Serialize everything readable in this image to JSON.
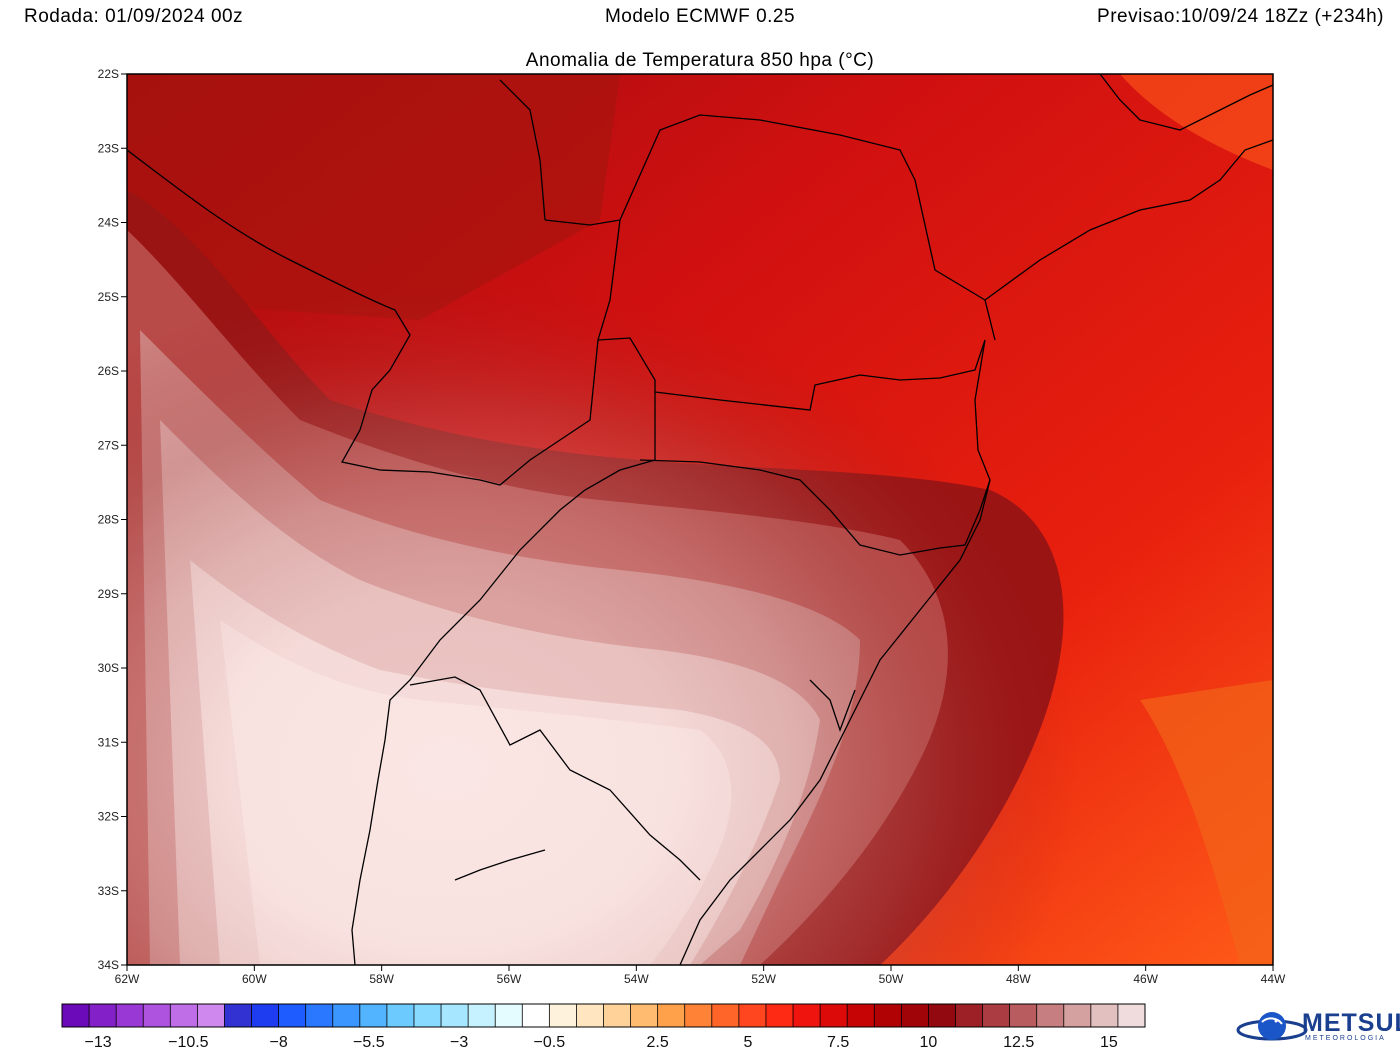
{
  "header": {
    "run_label": "Rodada: 01/09/2024 00z",
    "model_label": "Modelo ECMWF 0.25",
    "forecast_label": "Previsao:10/09/24 18Zz (+234h)"
  },
  "map": {
    "title": "Anomalia de Temperatura 850 hpa (°C)",
    "lat_labels": [
      "22S",
      "23S",
      "24S",
      "25S",
      "26S",
      "27S",
      "28S",
      "29S",
      "30S",
      "31S",
      "32S",
      "33S",
      "34S"
    ],
    "lon_labels": [
      "62W",
      "60W",
      "58W",
      "56W",
      "54W",
      "52W",
      "50W",
      "48W",
      "46W",
      "44W"
    ]
  },
  "colorbar": {
    "labels": [
      "-13",
      "-10.5",
      "-8",
      "-5.5",
      "-3",
      "-0.5",
      "2.5",
      "5",
      "7.5",
      "10",
      "12.5",
      "15"
    ],
    "colors": [
      "#6a0ab8",
      "#8420c8",
      "#9a38d6",
      "#ae52e0",
      "#c06ee8",
      "#cf88ee",
      "#3232d2",
      "#1e3cf0",
      "#1f5cff",
      "#2a78ff",
      "#3c96ff",
      "#52b4ff",
      "#6ccaff",
      "#88daff",
      "#a6e6ff",
      "#c6f2ff",
      "#e4fbff",
      "#ffffff",
      "#fff2dc",
      "#ffe6c0",
      "#ffd29a",
      "#ffbc70",
      "#ffa04a",
      "#ff8236",
      "#ff6428",
      "#ff461e",
      "#ff2a14",
      "#f0140e",
      "#dc0a08",
      "#c60406",
      "#b00204",
      "#a00408",
      "#920a10",
      "#9c2026",
      "#aa3c42",
      "#b85c60",
      "#c67e80",
      "#d4a0a0",
      "#e2c0c0",
      "#f0dcdc"
    ],
    "data_min": -14,
    "data_max": 16
  },
  "logo": {
    "name": "METSUL",
    "subtitle": "METEOROLOGIA",
    "icon": "globe-swoosh-icon"
  }
}
